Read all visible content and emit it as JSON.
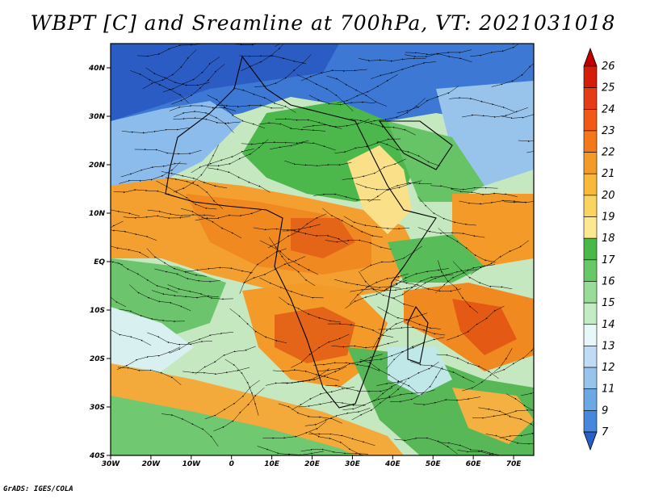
{
  "title": "WBPT [C] and Sreamline at 700hPa, VT: 2021031018",
  "credit": "GrADS: IGES/COLA",
  "map": {
    "lon_range": [
      -30,
      75
    ],
    "lat_range": [
      -40,
      45
    ],
    "lat_ticks": [
      {
        "value": 40,
        "label": "40N"
      },
      {
        "value": 30,
        "label": "30N"
      },
      {
        "value": 20,
        "label": "20N"
      },
      {
        "value": 10,
        "label": "10N"
      },
      {
        "value": 0,
        "label": "EQ"
      },
      {
        "value": -10,
        "label": "10S"
      },
      {
        "value": -20,
        "label": "20S"
      },
      {
        "value": -30,
        "label": "30S"
      },
      {
        "value": -40,
        "label": "40S"
      }
    ],
    "lon_ticks": [
      {
        "value": -30,
        "label": "30W"
      },
      {
        "value": -20,
        "label": "20W"
      },
      {
        "value": -10,
        "label": "10W"
      },
      {
        "value": 0,
        "label": "0"
      },
      {
        "value": 10,
        "label": "10E"
      },
      {
        "value": 20,
        "label": "20E"
      },
      {
        "value": 30,
        "label": "30E"
      },
      {
        "value": 40,
        "label": "40E"
      },
      {
        "value": 50,
        "label": "50E"
      },
      {
        "value": 60,
        "label": "60E"
      },
      {
        "value": 70,
        "label": "70E"
      }
    ]
  },
  "colorbar": {
    "levels": [
      "26",
      "25",
      "24",
      "23",
      "22",
      "21",
      "20",
      "19",
      "18",
      "17",
      "16",
      "15",
      "14",
      "13",
      "12",
      "11",
      "9",
      "7"
    ],
    "colors": [
      "#c00000",
      "#d41e0a",
      "#e43c14",
      "#f05a14",
      "#f4781a",
      "#f49a28",
      "#f8b838",
      "#fad460",
      "#fbe890",
      "#48b848",
      "#68c868",
      "#98dc98",
      "#c4ecc4",
      "#e8f8f8",
      "#c0dcf4",
      "#98c4ec",
      "#6ca8e4",
      "#4888dc",
      "#2860c8"
    ]
  }
}
